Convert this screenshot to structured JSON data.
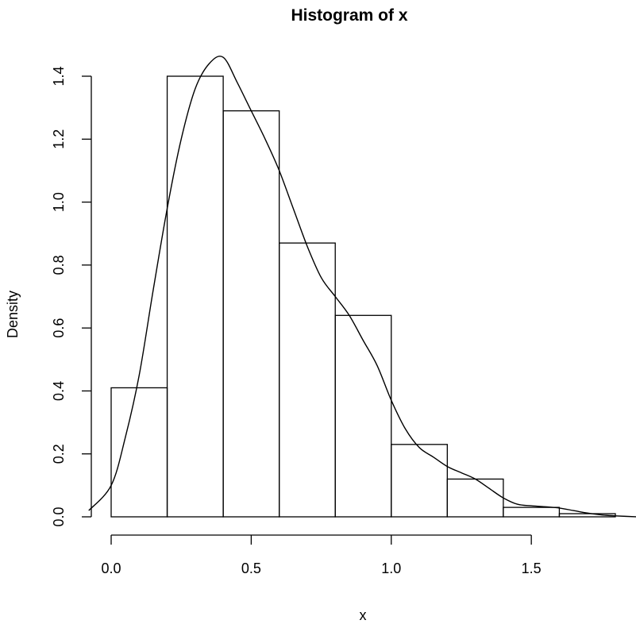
{
  "chart_data": {
    "type": "bar",
    "title": "Histogram of x",
    "xlabel": "x",
    "ylabel": "Density",
    "bin_edges": [
      0.0,
      0.2,
      0.4,
      0.6,
      0.8,
      1.0,
      1.2,
      1.4,
      1.6,
      1.8
    ],
    "values": [
      0.41,
      1.4,
      1.29,
      0.87,
      0.64,
      0.23,
      0.12,
      0.03,
      0.01
    ],
    "xlim": [
      -0.08,
      1.88
    ],
    "ylim": [
      0,
      1.45
    ],
    "x_ticks": [
      0.0,
      0.5,
      1.0,
      1.5
    ],
    "x_tick_labels": [
      "0.0",
      "0.5",
      "1.0",
      "1.5"
    ],
    "y_ticks": [
      0.0,
      0.2,
      0.4,
      0.6,
      0.8,
      1.0,
      1.2,
      1.4
    ],
    "y_tick_labels": [
      "0.0",
      "0.2",
      "0.4",
      "0.6",
      "0.8",
      "1.0",
      "1.2",
      "1.4"
    ],
    "density_curve": {
      "x": [
        -0.08,
        0.0,
        0.05,
        0.1,
        0.15,
        0.2,
        0.25,
        0.3,
        0.35,
        0.4,
        0.45,
        0.5,
        0.55,
        0.6,
        0.65,
        0.7,
        0.75,
        0.8,
        0.85,
        0.9,
        0.95,
        1.0,
        1.05,
        1.1,
        1.15,
        1.2,
        1.25,
        1.3,
        1.35,
        1.4,
        1.45,
        1.5,
        1.55,
        1.6,
        1.65,
        1.7,
        1.75,
        1.8,
        1.88
      ],
      "y": [
        0.02,
        0.1,
        0.25,
        0.45,
        0.72,
        0.98,
        1.2,
        1.36,
        1.44,
        1.46,
        1.38,
        1.29,
        1.2,
        1.1,
        0.98,
        0.86,
        0.76,
        0.7,
        0.64,
        0.56,
        0.48,
        0.37,
        0.28,
        0.22,
        0.19,
        0.16,
        0.14,
        0.12,
        0.09,
        0.06,
        0.04,
        0.035,
        0.032,
        0.028,
        0.02,
        0.012,
        0.006,
        0.003,
        0.0
      ]
    }
  }
}
